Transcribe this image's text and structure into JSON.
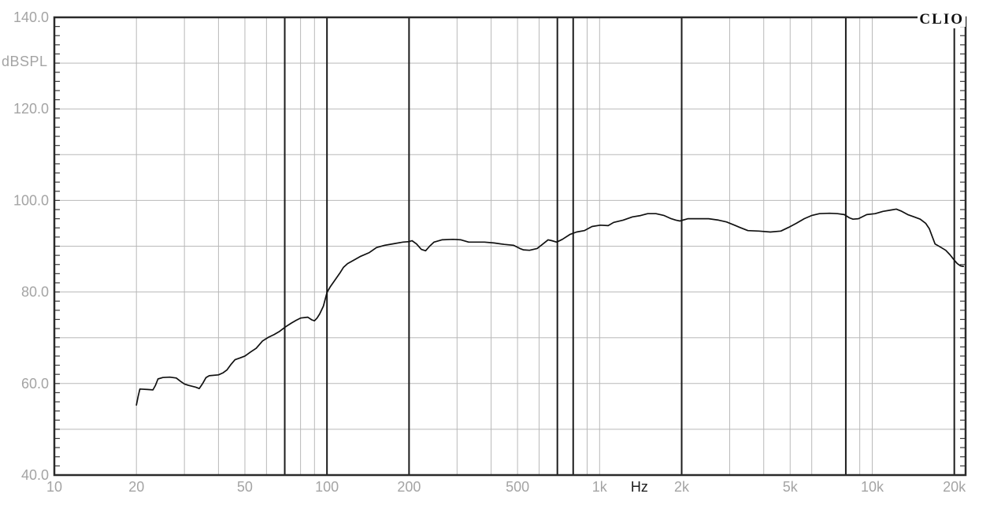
{
  "window": {
    "brand": "CLIO"
  },
  "chart_data": {
    "type": "line",
    "title": "",
    "ylabel": "dBSPL",
    "xlabel": "Hz",
    "x_scale": "log",
    "x_range_hz": [
      10,
      22000
    ],
    "ylim": [
      40,
      140
    ],
    "grid": true,
    "legend_position": "none",
    "y_gridline_step_db": 10,
    "y_minor_tick_step_db": 2,
    "y_axis_tick_labels": [
      {
        "db": 140,
        "label": "140.0"
      },
      {
        "db": 120,
        "label": "120.0"
      },
      {
        "db": 100,
        "label": "100.0"
      },
      {
        "db": 80,
        "label": "80.0"
      },
      {
        "db": 60,
        "label": "60.0"
      },
      {
        "db": 40,
        "label": "40.0"
      }
    ],
    "x_axis_tick_labels": [
      {
        "hz": 10,
        "label": "10",
        "emphasis": false
      },
      {
        "hz": 20,
        "label": "20",
        "emphasis": false
      },
      {
        "hz": 50,
        "label": "50",
        "emphasis": false
      },
      {
        "hz": 100,
        "label": "100",
        "emphasis": false
      },
      {
        "hz": 200,
        "label": "200",
        "emphasis": false
      },
      {
        "hz": 500,
        "label": "500",
        "emphasis": false
      },
      {
        "hz": 1000,
        "label": "1k",
        "emphasis": false
      },
      {
        "hz": 1400,
        "label": "Hz",
        "emphasis": true
      },
      {
        "hz": 2000,
        "label": "2k",
        "emphasis": false
      },
      {
        "hz": 5000,
        "label": "5k",
        "emphasis": false
      },
      {
        "hz": 10000,
        "label": "10k",
        "emphasis": false
      },
      {
        "hz": 20000,
        "label": "20k",
        "emphasis": false
      }
    ],
    "gridlines_light_hz": [
      20,
      30,
      40,
      50,
      60,
      80,
      90,
      300,
      400,
      500,
      600,
      900,
      1000,
      3000,
      4000,
      5000,
      6000,
      9000,
      10000
    ],
    "gridlines_dark_hz": [
      70,
      100,
      200,
      700,
      800,
      2000,
      8000,
      20000
    ],
    "series": [
      {
        "name": "frequency-response",
        "unit": "dBSPL",
        "points": [
          [
            20,
            55.3
          ],
          [
            20.3,
            57.2
          ],
          [
            20.6,
            58.8
          ],
          [
            22,
            58.7
          ],
          [
            23,
            58.6
          ],
          [
            23.5,
            59.6
          ],
          [
            24,
            61.0
          ],
          [
            25,
            61.3
          ],
          [
            26.5,
            61.4
          ],
          [
            28,
            61.2
          ],
          [
            29,
            60.5
          ],
          [
            30,
            59.9
          ],
          [
            31,
            59.6
          ],
          [
            33,
            59.2
          ],
          [
            34,
            58.9
          ],
          [
            35,
            60.0
          ],
          [
            36,
            61.3
          ],
          [
            37,
            61.7
          ],
          [
            40,
            61.9
          ],
          [
            41.5,
            62.3
          ],
          [
            43,
            63.0
          ],
          [
            44.5,
            64.2
          ],
          [
            46,
            65.2
          ],
          [
            48,
            65.6
          ],
          [
            50,
            66.0
          ],
          [
            52.5,
            66.9
          ],
          [
            55,
            67.7
          ],
          [
            58,
            69.3
          ],
          [
            61,
            70.1
          ],
          [
            64,
            70.7
          ],
          [
            67,
            71.4
          ],
          [
            70.5,
            72.4
          ],
          [
            74,
            73.2
          ],
          [
            77,
            73.8
          ],
          [
            80,
            74.3
          ],
          [
            85,
            74.5
          ],
          [
            88,
            73.9
          ],
          [
            90,
            73.7
          ],
          [
            92,
            74.3
          ],
          [
            94,
            75.2
          ],
          [
            97,
            76.9
          ],
          [
            100,
            79.9
          ],
          [
            103,
            81.2
          ],
          [
            107,
            82.6
          ],
          [
            112,
            84.3
          ],
          [
            115,
            85.4
          ],
          [
            119,
            86.2
          ],
          [
            125,
            86.9
          ],
          [
            133,
            87.8
          ],
          [
            143,
            88.6
          ],
          [
            152,
            89.7
          ],
          [
            163,
            90.2
          ],
          [
            174,
            90.5
          ],
          [
            190,
            90.9
          ],
          [
            200,
            91.0
          ],
          [
            205,
            91.2
          ],
          [
            213,
            90.5
          ],
          [
            222,
            89.3
          ],
          [
            230,
            89.0
          ],
          [
            238,
            90.0
          ],
          [
            247,
            90.9
          ],
          [
            264,
            91.4
          ],
          [
            290,
            91.5
          ],
          [
            310,
            91.4
          ],
          [
            331,
            90.9
          ],
          [
            354,
            90.9
          ],
          [
            378,
            90.9
          ],
          [
            410,
            90.7
          ],
          [
            447,
            90.4
          ],
          [
            483,
            90.2
          ],
          [
            510,
            89.5
          ],
          [
            525,
            89.2
          ],
          [
            553,
            89.1
          ],
          [
            590,
            89.5
          ],
          [
            626,
            90.7
          ],
          [
            647,
            91.4
          ],
          [
            668,
            91.2
          ],
          [
            696,
            90.9
          ],
          [
            730,
            91.5
          ],
          [
            780,
            92.6
          ],
          [
            823,
            93.1
          ],
          [
            879,
            93.4
          ],
          [
            938,
            94.3
          ],
          [
            1006,
            94.6
          ],
          [
            1075,
            94.5
          ],
          [
            1126,
            95.2
          ],
          [
            1220,
            95.7
          ],
          [
            1320,
            96.4
          ],
          [
            1413,
            96.7
          ],
          [
            1500,
            97.1
          ],
          [
            1610,
            97.1
          ],
          [
            1725,
            96.7
          ],
          [
            1830,
            96.0
          ],
          [
            1905,
            95.7
          ],
          [
            1970,
            95.5
          ],
          [
            2110,
            96.0
          ],
          [
            2315,
            96.0
          ],
          [
            2510,
            96.0
          ],
          [
            2730,
            95.7
          ],
          [
            2920,
            95.3
          ],
          [
            3125,
            94.6
          ],
          [
            3270,
            94.1
          ],
          [
            3500,
            93.4
          ],
          [
            3840,
            93.3
          ],
          [
            4230,
            93.1
          ],
          [
            4620,
            93.3
          ],
          [
            4930,
            94.1
          ],
          [
            5270,
            95.0
          ],
          [
            5630,
            96.0
          ],
          [
            5990,
            96.7
          ],
          [
            6400,
            97.1
          ],
          [
            6970,
            97.2
          ],
          [
            7460,
            97.1
          ],
          [
            7900,
            96.9
          ],
          [
            8250,
            96.2
          ],
          [
            8500,
            95.9
          ],
          [
            8900,
            96.0
          ],
          [
            9550,
            96.9
          ],
          [
            10250,
            97.1
          ],
          [
            10950,
            97.6
          ],
          [
            11700,
            97.9
          ],
          [
            12250,
            98.1
          ],
          [
            12750,
            97.7
          ],
          [
            13500,
            96.9
          ],
          [
            14250,
            96.4
          ],
          [
            15000,
            95.9
          ],
          [
            15700,
            95.0
          ],
          [
            16200,
            93.8
          ],
          [
            16600,
            92.1
          ],
          [
            17000,
            90.5
          ],
          [
            17800,
            89.8
          ],
          [
            18600,
            89.1
          ],
          [
            19300,
            88.1
          ],
          [
            19900,
            87.1
          ],
          [
            20500,
            86.2
          ],
          [
            21100,
            85.7
          ],
          [
            21600,
            85.6
          ]
        ]
      }
    ]
  },
  "colors": {
    "background": "#ffffff",
    "plot_border": "#2a2a2a",
    "grid_light": "#b9b9b9",
    "grid_dark": "#1c1c1c",
    "tick": "#3a3a3a",
    "curve": "#111111",
    "axis_label_gray": "#a4a4a4",
    "axis_label_dark": "#1c1c1c",
    "brand_text": "#101010"
  }
}
